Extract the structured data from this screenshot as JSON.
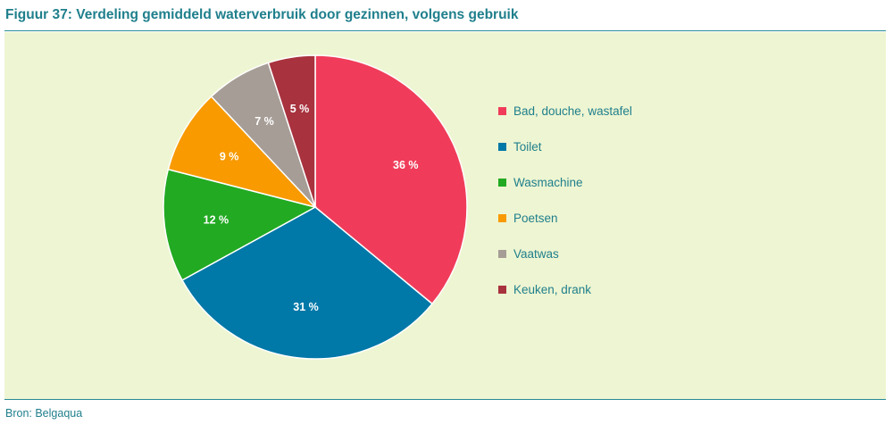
{
  "header": {
    "title": "Figuur 37: Verdeling gemiddeld waterverbruik door gezinnen, volgens gebruik"
  },
  "footer": {
    "source": "Bron: Belgaqua"
  },
  "colors": {
    "title_text": "#1f7f8c",
    "panel_background": "#eef5d2",
    "slice_label_text": "#ffffff"
  },
  "chart_data": {
    "type": "pie",
    "title": "Figuur 37: Verdeling gemiddeld waterverbruik door gezinnen, volgens gebruik",
    "legend_position": "right",
    "start": "top, clockwise",
    "slices": [
      {
        "label": "Bad, douche, wastafel",
        "value": 36,
        "value_label": "36 %",
        "color": "#f03c5a"
      },
      {
        "label": "Toilet",
        "value": 31,
        "value_label": "31 %",
        "color": "#0078a8"
      },
      {
        "label": "Wasmachine",
        "value": 12,
        "value_label": "12 %",
        "color": "#22aa22"
      },
      {
        "label": "Poetsen",
        "value": 9,
        "value_label": "9 %",
        "color": "#f89a00"
      },
      {
        "label": "Vaatwas",
        "value": 7,
        "value_label": "7 %",
        "color": "#a69d96"
      },
      {
        "label": "Keuken, drank",
        "value": 5,
        "value_label": "5 %",
        "color": "#a8323e"
      }
    ]
  }
}
